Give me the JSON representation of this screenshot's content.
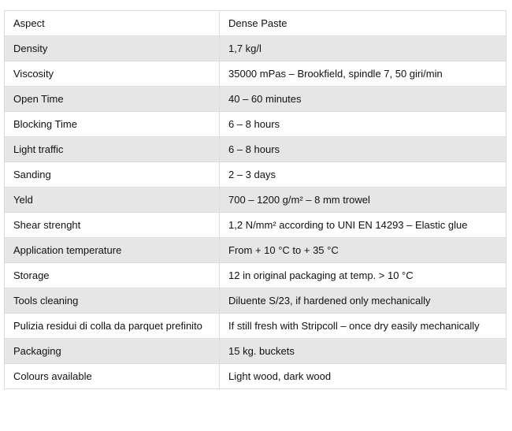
{
  "table": {
    "header": [
      "Aspect",
      "Dense Paste"
    ],
    "rows": [
      [
        "Density",
        "1,7 kg/l"
      ],
      [
        "Viscosity",
        "35000 mPas – Brookfield, spindle 7, 50 giri/min"
      ],
      [
        "Open Time",
        "40 – 60 minutes"
      ],
      [
        "Blocking Time",
        "6 – 8 hours"
      ],
      [
        "Light traffic",
        "6 – 8 hours"
      ],
      [
        "Sanding",
        "2 – 3 days"
      ],
      [
        "Yeld",
        "700 – 1200 g/m² – 8 mm trowel"
      ],
      [
        "Shear strenght",
        "1,2 N/mm² according to UNI EN 14293 – Elastic glue"
      ],
      [
        "Application temperature",
        "From + 10 °C to + 35 °C"
      ],
      [
        "Storage",
        "12 in original packaging at temp. > 10 °C"
      ],
      [
        "Tools cleaning",
        "Diluente S/23, if hardened only mechanically"
      ],
      [
        "Pulizia residui di colla da parquet prefinito",
        "If  still fresh with Stripcoll – once dry easily mechanically"
      ],
      [
        "Packaging",
        "15 kg. buckets"
      ],
      [
        "Colours available",
        "Light wood, dark wood"
      ]
    ]
  }
}
